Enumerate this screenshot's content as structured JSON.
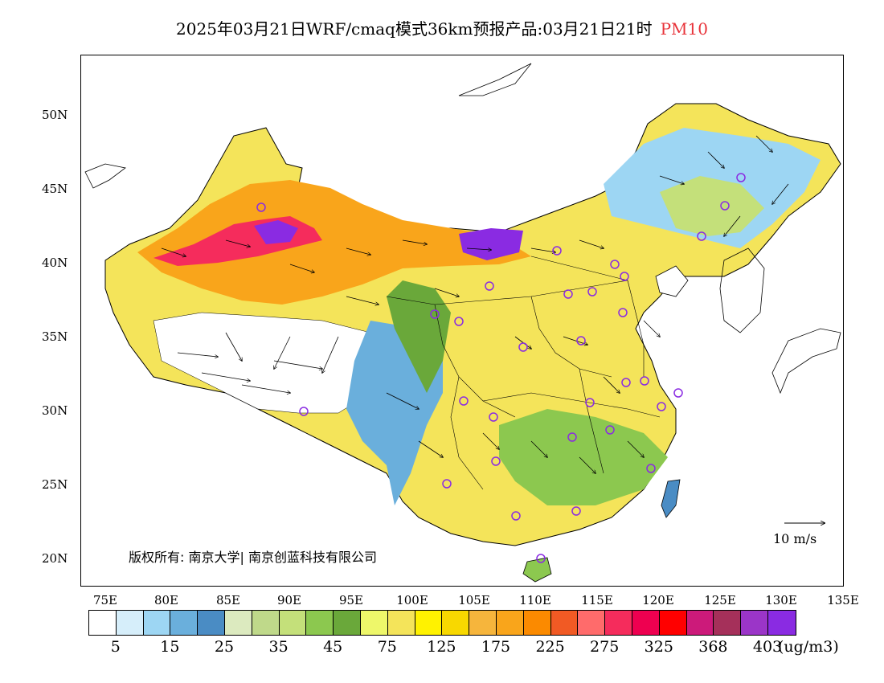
{
  "title": {
    "text": "2025年03月21日WRF/cmaq模式36km预报产品:03月21日21时",
    "variable": "PM10"
  },
  "map": {
    "lat_labels": [
      "50N",
      "45N",
      "40N",
      "35N",
      "30N",
      "25N",
      "20N"
    ],
    "lon_labels": [
      "75E",
      "80E",
      "85E",
      "90E",
      "95E",
      "100E",
      "105E",
      "110E",
      "115E",
      "120E",
      "125E",
      "130E",
      "135E"
    ],
    "copyright": "版权所有: 南京大学| 南京创蓝科技有限公司",
    "wind_reference": "10 m/s"
  },
  "colorbar": {
    "colors": [
      "#ffffff",
      "#d6eefa",
      "#9dd6f3",
      "#6aafdc",
      "#4a8cc4",
      "#dceabf",
      "#bfd98a",
      "#c4e07a",
      "#8cc84f",
      "#6aa83a",
      "#eef76a",
      "#f4e45a",
      "#fff200",
      "#f8d800",
      "#f6b53c",
      "#f9a51b",
      "#fb8a00",
      "#f15a24",
      "#ff6b6b",
      "#f52c5c",
      "#ee0050",
      "#ff0000",
      "#cc1a7a",
      "#a5305a",
      "#9b35c8",
      "#8a2be2"
    ],
    "labels": [
      "5",
      "15",
      "25",
      "35",
      "45",
      "75",
      "125",
      "175",
      "225",
      "275",
      "325",
      "368",
      "403"
    ],
    "unit": "(ug/m3)"
  }
}
